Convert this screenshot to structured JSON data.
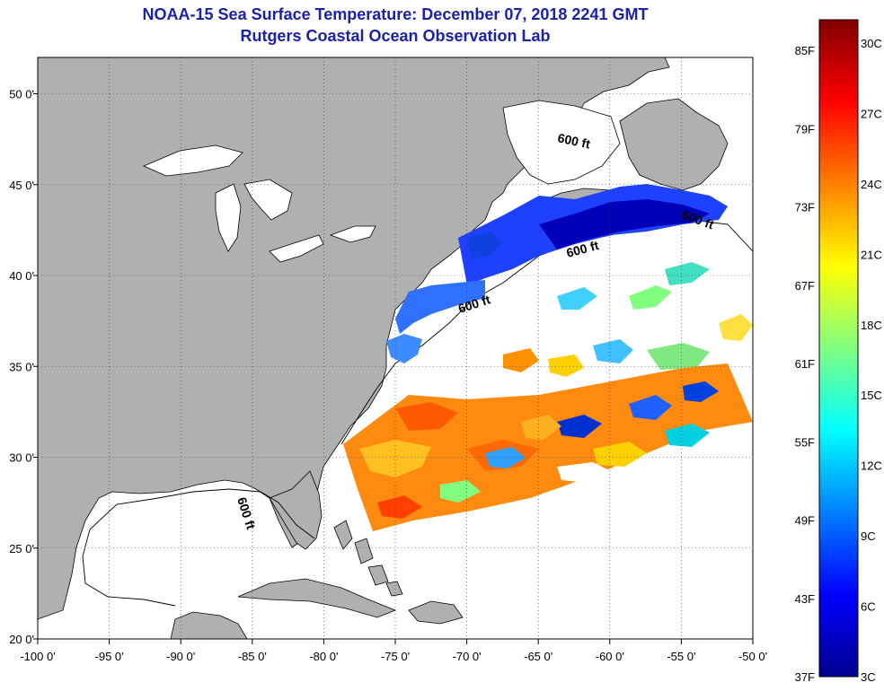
{
  "title": "NOAA-15 Sea Surface Temperature:  December 07, 2018 2241 GMT",
  "subtitle": "Rutgers Coastal Ocean Observation Lab",
  "map": {
    "lon_range": [
      -100,
      -50
    ],
    "lat_range": [
      20,
      52
    ],
    "lon_ticks": [
      "-100 0'",
      "-95 0'",
      "-90 0'",
      "-85 0'",
      "-80 0'",
      "-75 0'",
      "-70 0'",
      "-65 0'",
      "-60 0'",
      "-55 0'",
      "-50 0'"
    ],
    "lat_ticks": [
      "20 0'",
      "25 0'",
      "30 0'",
      "35 0'",
      "40 0'",
      "45 0'",
      "50 0'"
    ],
    "contour_labels": [
      "600 ft",
      "600 ft",
      "600 ft",
      "600 ft",
      "600 ft"
    ],
    "land_color": "#b0b0b0",
    "cloud_color": "#ffffff"
  },
  "colorbar": {
    "f_labels": [
      "85F",
      "79F",
      "73F",
      "67F",
      "61F",
      "55F",
      "49F",
      "43F",
      "37F"
    ],
    "c_labels": [
      "30C",
      "27C",
      "24C",
      "21C",
      "18C",
      "15C",
      "12C",
      "9C",
      "6C",
      "3C"
    ],
    "colors": [
      "#00008f",
      "#0000ff",
      "#0080ff",
      "#00ffff",
      "#80ff80",
      "#ffff00",
      "#ff8000",
      "#ff0000",
      "#800000"
    ]
  }
}
